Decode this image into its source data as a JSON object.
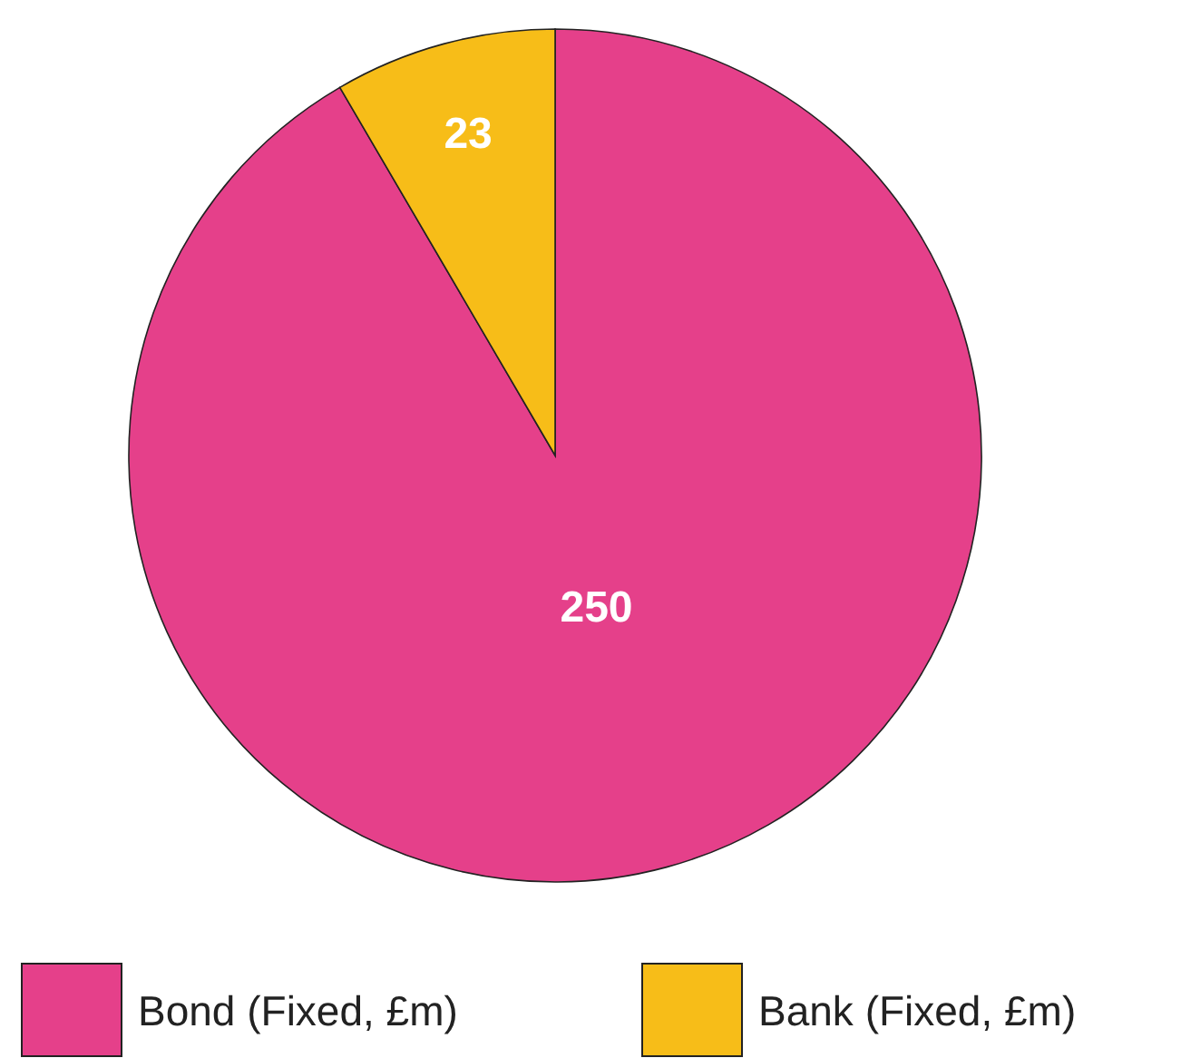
{
  "chart_data": {
    "type": "pie",
    "categories": [
      "Bond (Fixed, £m)",
      "Bank (Fixed, £m)"
    ],
    "values": [
      250,
      23
    ],
    "colors": [
      "#e5408a",
      "#f7bd18"
    ],
    "data_labels": true,
    "legend": "bottom"
  }
}
